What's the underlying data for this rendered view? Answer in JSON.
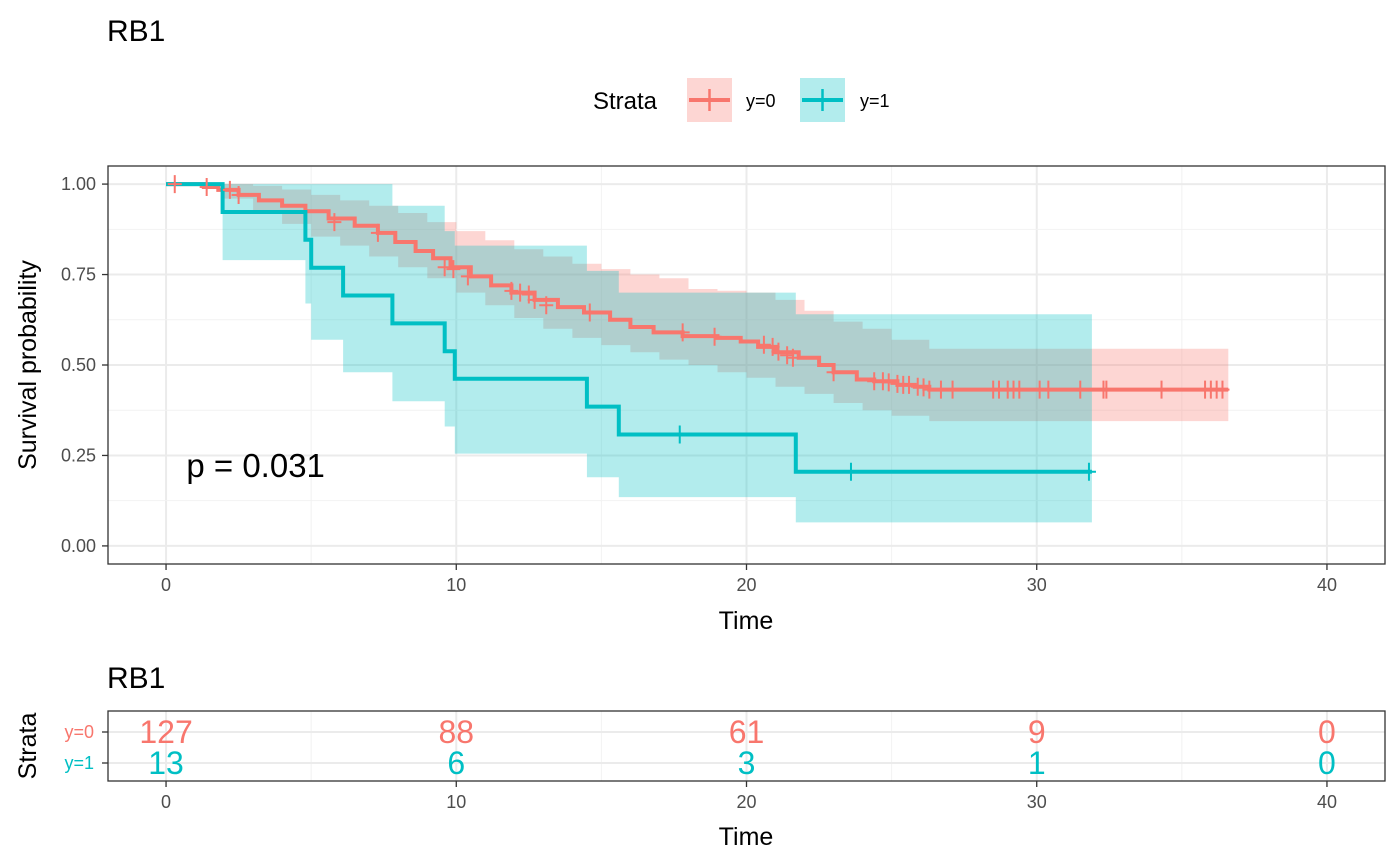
{
  "chart_data": [
    {
      "type": "line",
      "subtype": "kaplan-meier",
      "title": "RB1",
      "xlabel": "Time",
      "ylabel": "Survival probability",
      "xlim": [
        -2,
        42
      ],
      "ylim": [
        -0.05,
        1.05
      ],
      "xticks": [
        0,
        10,
        20,
        30,
        40
      ],
      "xtick_labels": [
        "0",
        "10",
        "20",
        "30",
        "40"
      ],
      "yticks": [
        0,
        0.25,
        0.5,
        0.75,
        1
      ],
      "ytick_labels": [
        "0.00",
        "0.25",
        "0.50",
        "0.75",
        "1.00"
      ],
      "grid": true,
      "annotation": "p = 0.031",
      "annotation_pos": [
        0.7,
        0.19
      ],
      "legend": {
        "title": "Strata",
        "placement": "top-center"
      },
      "series": [
        {
          "name": "y=0",
          "color": "#F8766D",
          "x": [
            0,
            1.3,
            1.8,
            2.5,
            3.2,
            4.0,
            4.8,
            5.6,
            6.5,
            7.3,
            7.9,
            8.6,
            9.2,
            9.8,
            10.5,
            11.2,
            11.9,
            12.7,
            13.5,
            14.4,
            15.3,
            16.0,
            16.8,
            17.8,
            19.0,
            19.8,
            20.4,
            21.0,
            21.8,
            22.5,
            23.0,
            23.8,
            24.4,
            25.2,
            25.8,
            26.3,
            36.6
          ],
          "y": [
            1.0,
            0.992,
            0.984,
            0.97,
            0.955,
            0.94,
            0.925,
            0.905,
            0.885,
            0.865,
            0.84,
            0.815,
            0.795,
            0.77,
            0.745,
            0.72,
            0.7,
            0.68,
            0.66,
            0.645,
            0.625,
            0.605,
            0.59,
            0.58,
            0.575,
            0.565,
            0.55,
            0.535,
            0.52,
            0.5,
            0.48,
            0.46,
            0.455,
            0.445,
            0.44,
            0.432,
            0.432
          ],
          "ci_x": [
            0,
            2.0,
            3.0,
            4.0,
            5.0,
            6.0,
            7.0,
            8.0,
            9.0,
            10.0,
            11.0,
            12.0,
            13.0,
            14.0,
            15.0,
            16.0,
            17.0,
            18.0,
            19.0,
            20.0,
            21.0,
            22.0,
            23.0,
            24.0,
            25.0,
            26.3,
            36.6
          ],
          "ci_upper": [
            1.0,
            1.0,
            0.995,
            0.985,
            0.97,
            0.955,
            0.94,
            0.92,
            0.895,
            0.87,
            0.845,
            0.82,
            0.8,
            0.78,
            0.765,
            0.75,
            0.74,
            0.71,
            0.705,
            0.7,
            0.68,
            0.65,
            0.62,
            0.6,
            0.57,
            0.545,
            0.545
          ],
          "ci_lower": [
            1.0,
            0.96,
            0.92,
            0.89,
            0.855,
            0.83,
            0.8,
            0.77,
            0.74,
            0.7,
            0.665,
            0.63,
            0.6,
            0.575,
            0.555,
            0.535,
            0.515,
            0.5,
            0.48,
            0.465,
            0.44,
            0.42,
            0.395,
            0.375,
            0.36,
            0.345,
            0.345
          ],
          "censor_x": [
            0.3,
            1.4,
            2.2,
            2.5,
            5.8,
            7.3,
            9.6,
            9.9,
            10.4,
            11.9,
            12.2,
            12.5,
            12.7,
            13.1,
            14.6,
            17.8,
            18.9,
            20.6,
            20.9,
            21.1,
            21.4,
            21.6,
            23.0,
            24.4,
            24.7,
            24.9,
            25.2,
            25.4,
            25.6,
            25.9,
            26.1,
            26.3,
            26.7,
            27.1,
            28.5,
            28.7,
            29.0,
            29.2,
            29.4,
            30.1,
            30.4,
            31.5,
            32.3,
            32.4,
            34.3,
            35.8,
            36.0,
            36.2,
            36.4
          ],
          "censor_y": [
            1.0,
            0.992,
            0.984,
            0.97,
            0.895,
            0.865,
            0.77,
            0.765,
            0.745,
            0.705,
            0.7,
            0.695,
            0.68,
            0.665,
            0.645,
            0.59,
            0.578,
            0.556,
            0.55,
            0.537,
            0.527,
            0.52,
            0.48,
            0.455,
            0.455,
            0.452,
            0.448,
            0.445,
            0.445,
            0.44,
            0.438,
            0.432,
            0.432,
            0.432,
            0.432,
            0.432,
            0.432,
            0.432,
            0.432,
            0.432,
            0.432,
            0.432,
            0.432,
            0.432,
            0.432,
            0.432,
            0.432,
            0.432,
            0.432
          ]
        },
        {
          "name": "y=1",
          "color": "#00BFC4",
          "x": [
            0,
            1.95,
            4.8,
            5.0,
            6.1,
            7.8,
            9.6,
            9.95,
            14.5,
            15.6,
            21.7,
            31.9
          ],
          "y": [
            1.0,
            0.923,
            0.846,
            0.769,
            0.692,
            0.615,
            0.538,
            0.462,
            0.385,
            0.308,
            0.205,
            0.205
          ],
          "ci_x": [
            0,
            1.95,
            4.8,
            5.0,
            6.1,
            7.8,
            9.6,
            9.95,
            14.5,
            15.6,
            21.7,
            31.9
          ],
          "ci_upper": [
            1.0,
            1.0,
            1.0,
            1.0,
            1.0,
            0.94,
            0.87,
            0.83,
            0.76,
            0.7,
            0.64,
            0.64
          ],
          "ci_lower": [
            1.0,
            0.79,
            0.67,
            0.57,
            0.48,
            0.4,
            0.33,
            0.255,
            0.19,
            0.135,
            0.065,
            0.065
          ],
          "censor_x": [
            17.7,
            23.6,
            31.8
          ],
          "censor_y": [
            0.308,
            0.205,
            0.205
          ]
        }
      ]
    },
    {
      "type": "table",
      "title": "RB1",
      "xlabel": "Time",
      "ylabel": "Strata",
      "xlim": [
        -2,
        42
      ],
      "xticks": [
        0,
        10,
        20,
        30,
        40
      ],
      "xtick_labels": [
        "0",
        "10",
        "20",
        "30",
        "40"
      ],
      "rows": [
        {
          "name": "y=0",
          "color": "#F8766D",
          "values": [
            "127",
            "88",
            "61",
            "9",
            "0"
          ]
        },
        {
          "name": "y=1",
          "color": "#00BFC4",
          "values": [
            "13",
            "6",
            "3",
            "1",
            "0"
          ]
        }
      ]
    }
  ]
}
